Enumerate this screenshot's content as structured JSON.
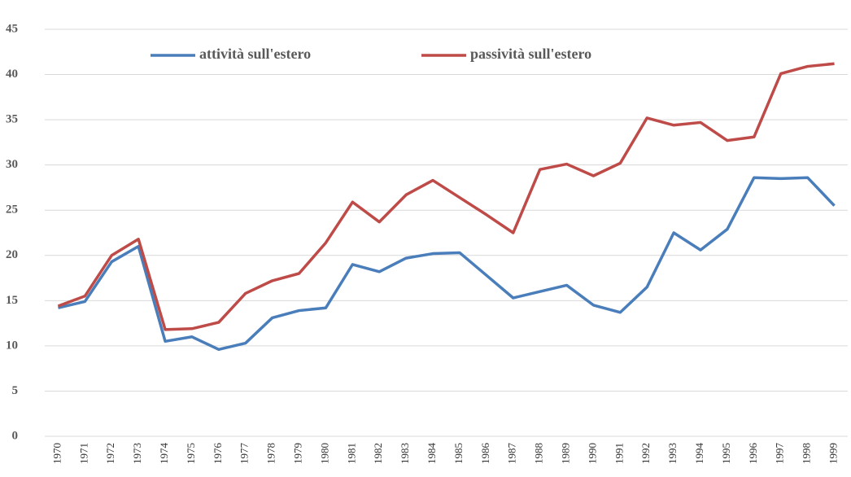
{
  "chart_data": {
    "type": "line",
    "categories": [
      "1970",
      "1971",
      "1972",
      "1973",
      "1974",
      "1975",
      "1976",
      "1977",
      "1978",
      "1979",
      "1980",
      "1981",
      "1982",
      "1983",
      "1984",
      "1985",
      "1986",
      "1987",
      "1988",
      "1989",
      "1990",
      "1991",
      "1992",
      "1993",
      "1994",
      "1995",
      "1996",
      "1997",
      "1998",
      "1999"
    ],
    "series": [
      {
        "name": "attività sull'estero",
        "color": "#4a7ebb",
        "values": [
          14.2,
          14.9,
          19.3,
          21.0,
          10.5,
          11.0,
          9.6,
          10.3,
          13.1,
          13.9,
          14.2,
          19.0,
          18.2,
          19.7,
          20.2,
          20.3,
          17.8,
          15.3,
          16.0,
          16.7,
          14.5,
          13.7,
          16.5,
          22.5,
          20.6,
          22.9,
          28.6,
          28.5,
          28.6,
          25.5
        ]
      },
      {
        "name": "passività sull'estero",
        "color": "#be4b48",
        "values": [
          14.4,
          15.5,
          20.0,
          21.8,
          11.8,
          11.9,
          12.6,
          15.8,
          17.2,
          18.0,
          21.4,
          25.9,
          23.7,
          26.7,
          28.3,
          26.4,
          24.5,
          22.5,
          29.5,
          30.1,
          28.8,
          30.2,
          35.2,
          34.4,
          34.7,
          32.7,
          33.1,
          40.1,
          40.9,
          41.2
        ]
      }
    ],
    "ylim": [
      0,
      45
    ],
    "yticks": [
      0,
      5,
      10,
      15,
      20,
      25,
      30,
      35,
      40,
      45
    ],
    "grid": true,
    "legend": "top"
  }
}
